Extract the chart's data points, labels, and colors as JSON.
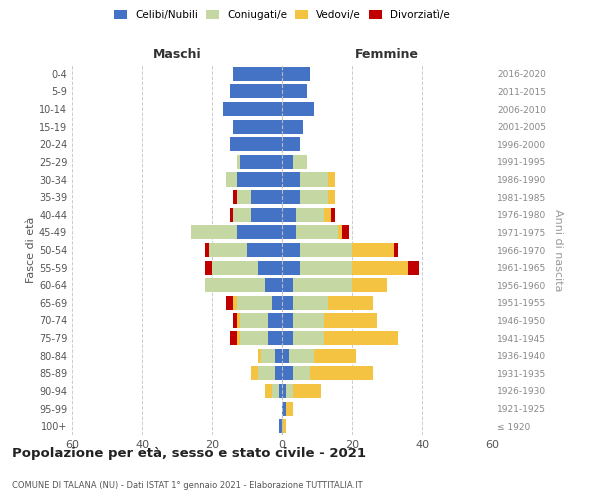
{
  "age_groups": [
    "100+",
    "95-99",
    "90-94",
    "85-89",
    "80-84",
    "75-79",
    "70-74",
    "65-69",
    "60-64",
    "55-59",
    "50-54",
    "45-49",
    "40-44",
    "35-39",
    "30-34",
    "25-29",
    "20-24",
    "15-19",
    "10-14",
    "5-9",
    "0-4"
  ],
  "birth_years": [
    "≤ 1920",
    "1921-1925",
    "1926-1930",
    "1931-1935",
    "1936-1940",
    "1941-1945",
    "1946-1950",
    "1951-1955",
    "1956-1960",
    "1961-1965",
    "1966-1970",
    "1971-1975",
    "1976-1980",
    "1981-1985",
    "1986-1990",
    "1991-1995",
    "1996-2000",
    "2001-2005",
    "2006-2010",
    "2011-2015",
    "2016-2020"
  ],
  "maschi": {
    "celibi": [
      1,
      0,
      1,
      2,
      2,
      4,
      4,
      3,
      5,
      7,
      10,
      13,
      9,
      9,
      13,
      12,
      15,
      14,
      17,
      15,
      14
    ],
    "coniugati": [
      0,
      0,
      2,
      5,
      4,
      8,
      8,
      10,
      17,
      13,
      11,
      13,
      5,
      4,
      3,
      1,
      0,
      0,
      0,
      0,
      0
    ],
    "vedovi": [
      0,
      0,
      2,
      2,
      1,
      1,
      1,
      1,
      0,
      0,
      0,
      0,
      0,
      0,
      0,
      0,
      0,
      0,
      0,
      0,
      0
    ],
    "divorziati": [
      0,
      0,
      0,
      0,
      0,
      2,
      1,
      2,
      0,
      2,
      1,
      0,
      1,
      1,
      0,
      0,
      0,
      0,
      0,
      0,
      0
    ]
  },
  "femmine": {
    "nubili": [
      0,
      1,
      1,
      3,
      2,
      3,
      3,
      3,
      3,
      5,
      5,
      4,
      4,
      5,
      5,
      3,
      5,
      6,
      9,
      7,
      8
    ],
    "coniugate": [
      0,
      0,
      2,
      5,
      7,
      9,
      9,
      10,
      17,
      15,
      15,
      12,
      8,
      8,
      8,
      4,
      0,
      0,
      0,
      0,
      0
    ],
    "vedove": [
      1,
      2,
      8,
      18,
      12,
      21,
      15,
      13,
      10,
      16,
      12,
      1,
      2,
      2,
      2,
      0,
      0,
      0,
      0,
      0,
      0
    ],
    "divorziate": [
      0,
      0,
      0,
      0,
      0,
      0,
      0,
      0,
      0,
      3,
      1,
      2,
      1,
      0,
      0,
      0,
      0,
      0,
      0,
      0,
      0
    ]
  },
  "colors": {
    "celibi_nubili": "#4472C4",
    "coniugati": "#C5D8A4",
    "vedovi": "#F5C342",
    "divorziati": "#C00000"
  },
  "xlim": 60,
  "title": "Popolazione per età, sesso e stato civile - 2021",
  "subtitle": "COMUNE DI TALANA (NU) - Dati ISTAT 1° gennaio 2021 - Elaborazione TUTTITALIA.IT",
  "ylabel_left": "Fasce di età",
  "ylabel_right": "Anni di nascita",
  "xlabel_left": "Maschi",
  "xlabel_right": "Femmine",
  "background_color": "#ffffff",
  "grid_color": "#cccccc"
}
